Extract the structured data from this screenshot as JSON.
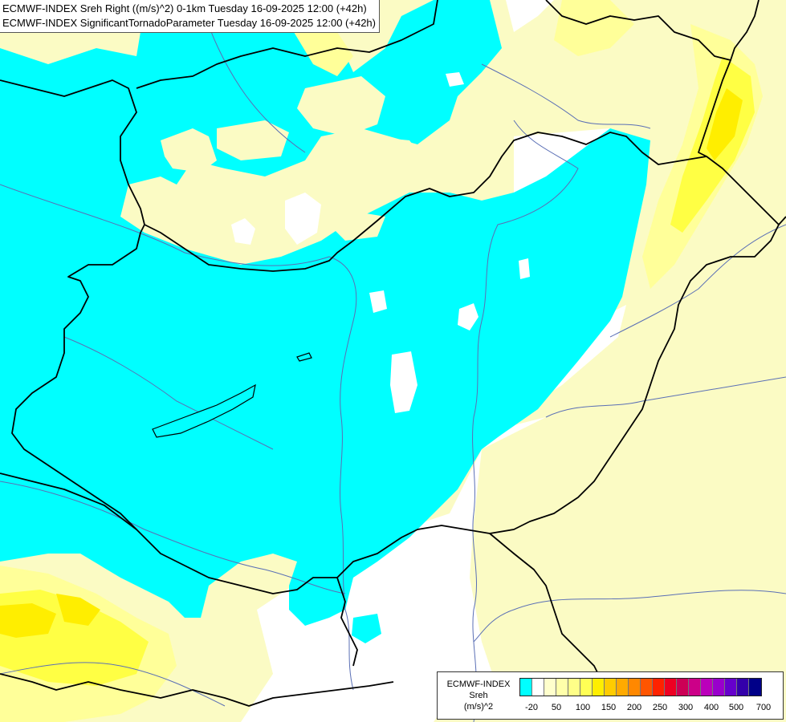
{
  "header": {
    "line1": "ECMWF-INDEX Sreh Right ((m/s)^2) 0-1km Tuesday 16-09-2025 12:00 (+42h)",
    "line2": "ECMWF-INDEX SignificantTornadoParameter Tuesday 16-09-2025 12:00 (+42h)"
  },
  "legend": {
    "source": "ECMWF-INDEX",
    "parameter": "Sreh",
    "unit": "(m/s)^2",
    "colors": [
      "#00ffff",
      "#ffffff",
      "#ffffcc",
      "#ffffaa",
      "#ffff88",
      "#ffff55",
      "#ffee00",
      "#ffcc00",
      "#ffaa00",
      "#ff8800",
      "#ff5500",
      "#ff2200",
      "#ee0022",
      "#cc0055",
      "#cc0088",
      "#bb00bb",
      "#9900cc",
      "#6600cc",
      "#3300aa",
      "#000088"
    ],
    "ticks": [
      "-20",
      "50",
      "100",
      "150",
      "200",
      "250",
      "300",
      "400",
      "500",
      "700"
    ]
  },
  "map_colors": {
    "cyan": "#00ffff",
    "pale_yellow": "#fbfbc4",
    "light_yellow": "#ffff99",
    "yellow": "#ffff44",
    "bright_yellow": "#ffee00",
    "border": "#000000",
    "river": "#5a6fb5"
  }
}
